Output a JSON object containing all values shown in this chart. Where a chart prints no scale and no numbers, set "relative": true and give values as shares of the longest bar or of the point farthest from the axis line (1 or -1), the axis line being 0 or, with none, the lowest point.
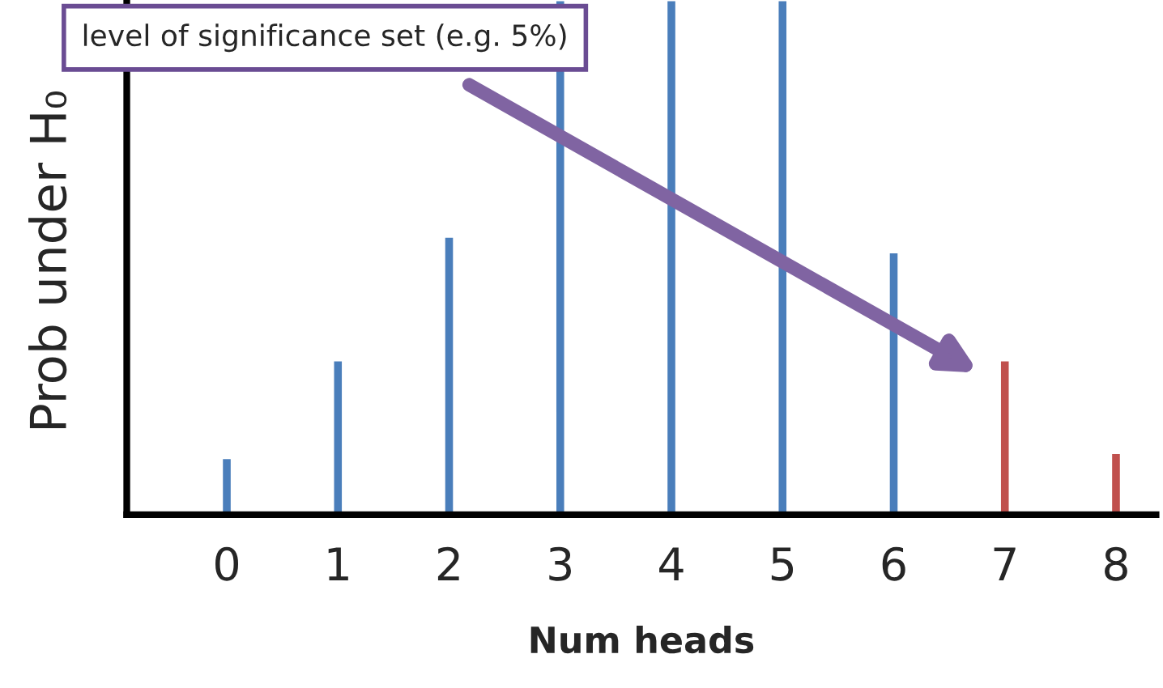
{
  "chart_data": {
    "type": "bar",
    "relative": true,
    "xlabel": "Num heads",
    "ylabel": "Prob under H₀",
    "categories": [
      "0",
      "1",
      "2",
      "3",
      "4",
      "5",
      "6",
      "7",
      "8"
    ],
    "values": [
      0.11,
      0.3,
      0.54,
      1,
      1,
      1,
      0.51,
      0.3,
      0.12
    ],
    "colors": [
      "#4a7ebb",
      "#4a7ebb",
      "#4a7ebb",
      "#4a7ebb",
      "#4a7ebb",
      "#4a7ebb",
      "#4a7ebb",
      "#c0504d",
      "#c0504d"
    ],
    "annotations": [
      "level of significance set (e.g. 5%)"
    ],
    "grid": false,
    "legend": false
  }
}
